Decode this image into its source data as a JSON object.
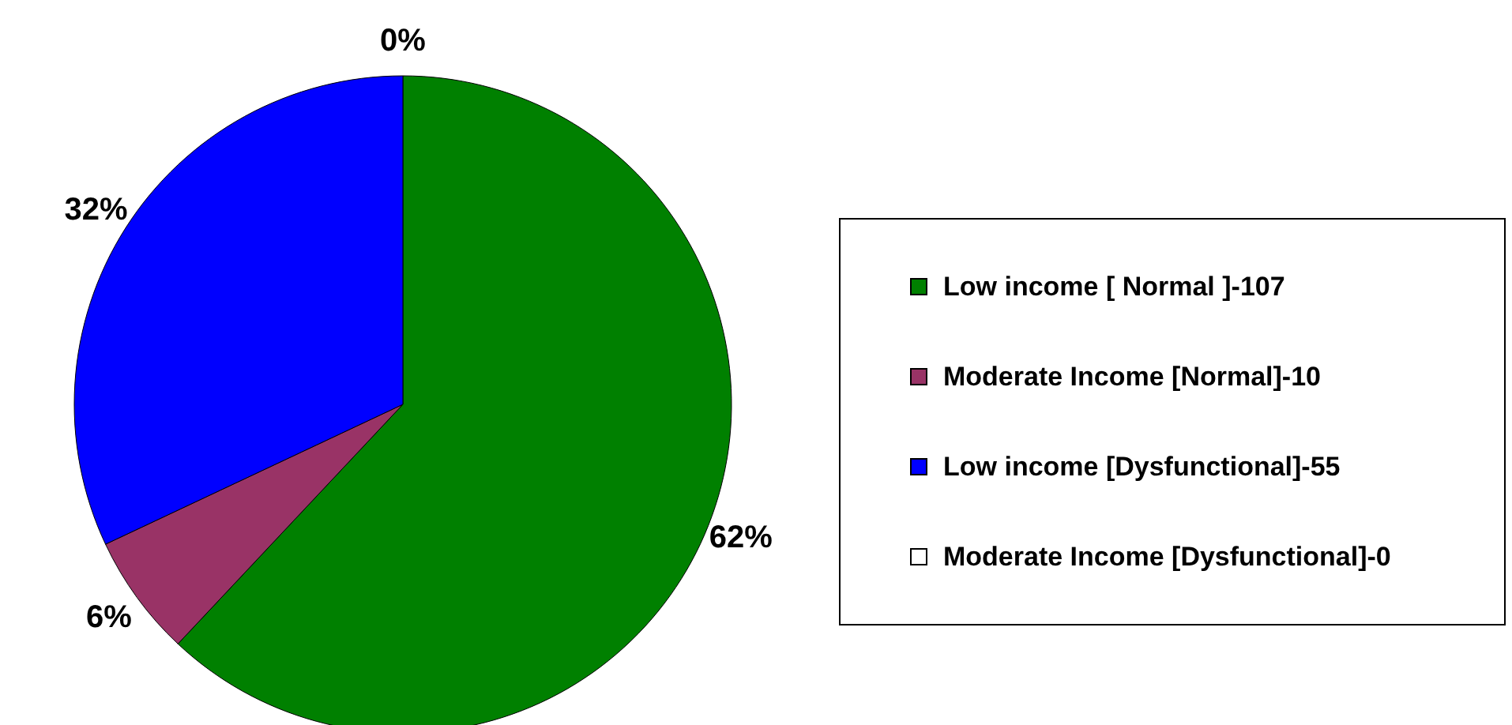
{
  "chart_data": {
    "type": "pie",
    "categories": [
      "Low income [ Normal ]-107",
      "Moderate Income [Normal]-10",
      "Low income [Dysfunctional]-55",
      "Moderate Income [Dysfunctional]-0"
    ],
    "values": [
      62,
      6,
      32,
      0
    ],
    "colors": [
      "#008000",
      "#993366",
      "#0000ff",
      "#ffffff"
    ],
    "value_labels": [
      "62%",
      "6%",
      "32%",
      "0%"
    ],
    "legend": "right"
  }
}
